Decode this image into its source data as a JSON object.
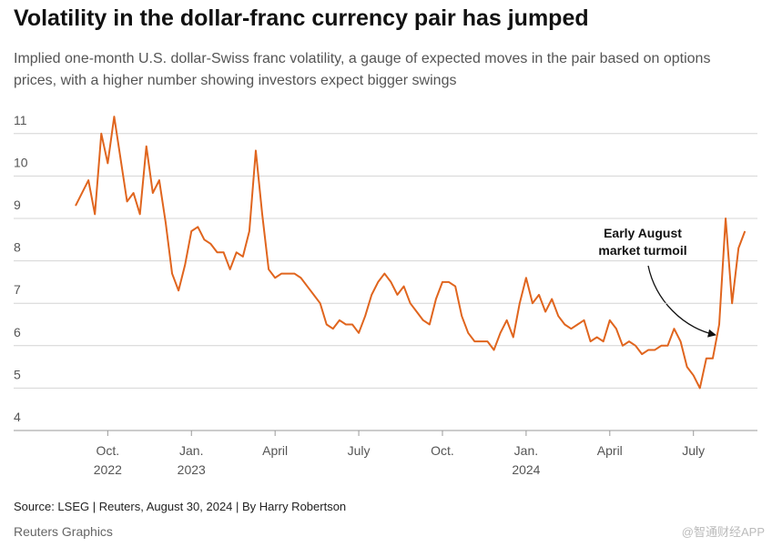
{
  "title": "Volatility in the dollar-franc currency pair has jumped",
  "subtitle": "Implied one-month U.S. dollar-Swiss franc volatility, a gauge of expected moves in the pair based on options prices, with a higher number showing investors expect bigger swings",
  "source": "Source: LSEG | Reuters, August 30, 2024 | By Harry Robertson",
  "credit": "Reuters Graphics",
  "watermark": "@智通财经APP",
  "chart_data": {
    "type": "line",
    "color": "#e0651e",
    "annotation": "Early August market turmoil",
    "categories": [
      null,
      null,
      null,
      null,
      null,
      "Oct. 2022",
      null,
      null,
      null,
      null,
      null,
      null,
      null,
      null,
      null,
      null,
      null,
      null,
      "Jan. 2023",
      null,
      null,
      null,
      null,
      null,
      null,
      null,
      null,
      null,
      null,
      null,
      null,
      "April",
      null,
      null,
      null,
      null,
      null,
      null,
      null,
      null,
      null,
      null,
      null,
      null,
      "July",
      null,
      null,
      null,
      null,
      null,
      null,
      null,
      null,
      null,
      null,
      null,
      null,
      "Oct.",
      null,
      null,
      null,
      null,
      null,
      null,
      null,
      null,
      null,
      null,
      null,
      null,
      "Jan. 2024",
      null,
      null,
      null,
      null,
      null,
      null,
      null,
      null,
      null,
      null,
      null,
      null,
      "April",
      null,
      null,
      null,
      null,
      null,
      null,
      null,
      null,
      null,
      null,
      null,
      null,
      "July",
      null,
      null,
      null,
      null,
      null,
      null,
      null,
      null
    ],
    "values": [
      9.3,
      9.6,
      9.9,
      9.1,
      11.0,
      10.3,
      11.4,
      10.4,
      9.4,
      9.6,
      9.1,
      10.7,
      9.6,
      9.9,
      8.9,
      7.7,
      7.3,
      7.9,
      8.7,
      8.8,
      8.5,
      8.4,
      8.2,
      8.2,
      7.8,
      8.2,
      8.1,
      8.7,
      10.6,
      9.1,
      7.8,
      7.6,
      7.7,
      7.7,
      7.7,
      7.6,
      7.4,
      7.2,
      7.0,
      6.5,
      6.4,
      6.6,
      6.5,
      6.5,
      6.3,
      6.7,
      7.2,
      7.5,
      7.7,
      7.5,
      7.2,
      7.4,
      7.0,
      6.8,
      6.6,
      6.5,
      7.1,
      7.5,
      7.5,
      7.4,
      6.7,
      6.3,
      6.1,
      6.1,
      6.1,
      5.9,
      6.3,
      6.6,
      6.2,
      7.0,
      7.6,
      7.0,
      7.2,
      6.8,
      7.1,
      6.7,
      6.5,
      6.4,
      6.5,
      6.6,
      6.1,
      6.2,
      6.1,
      6.6,
      6.4,
      6.0,
      6.1,
      6.0,
      5.8,
      5.9,
      5.9,
      6.0,
      6.0,
      6.4,
      6.1,
      5.5,
      5.3,
      5.0,
      5.7,
      5.7,
      6.5,
      9.0,
      7.0,
      8.3,
      8.7
    ],
    "ylim": [
      4,
      11.5
    ],
    "yticks": [
      4,
      5,
      6,
      7,
      8,
      9,
      10,
      11
    ],
    "grid": true
  }
}
